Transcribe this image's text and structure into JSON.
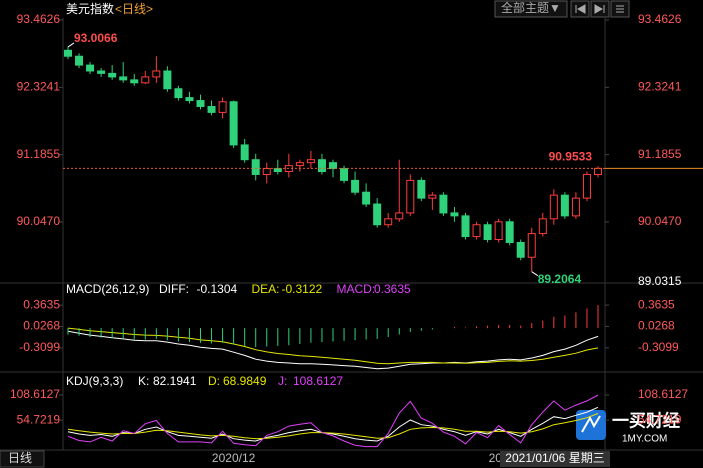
{
  "header": {
    "title": "美元指数",
    "period": "<日线>",
    "theme_button": "全部主题▼"
  },
  "chart_data": [
    {
      "type": "candlestick",
      "up_color": "#ff3c3c",
      "down_color": "#2fd27a",
      "ylim": [
        89.0315,
        93.4626
      ],
      "yticks": [
        {
          "value": 90.047,
          "label": "90.0470"
        },
        91.1855,
        92.3241,
        93.4626
      ],
      "categories": [
        null,
        null,
        null,
        null,
        null,
        null,
        null,
        null,
        null,
        null,
        null,
        null,
        null,
        null,
        null,
        "2020/12",
        null,
        null,
        null,
        null,
        null,
        null,
        null,
        null,
        null,
        null,
        null,
        null,
        null,
        null,
        null,
        null,
        null,
        null,
        null,
        null,
        null,
        null,
        null,
        "202",
        null,
        null,
        null,
        null,
        null,
        null,
        null,
        null,
        null
      ],
      "ohlc": [
        [
          92.95,
          93.0066,
          92.8,
          92.85
        ],
        [
          92.85,
          92.9,
          92.65,
          92.7
        ],
        [
          92.7,
          92.75,
          92.55,
          92.6
        ],
        [
          92.6,
          92.65,
          92.5,
          92.56
        ],
        [
          92.56,
          92.7,
          92.45,
          92.5
        ],
        [
          92.5,
          92.75,
          92.4,
          92.45
        ],
        [
          92.45,
          92.55,
          92.35,
          92.4
        ],
        [
          92.4,
          92.6,
          92.38,
          92.5
        ],
        [
          92.5,
          92.85,
          92.4,
          92.6
        ],
        [
          92.6,
          92.68,
          92.25,
          92.3
        ],
        [
          92.3,
          92.35,
          92.1,
          92.15
        ],
        [
          92.15,
          92.25,
          92.05,
          92.1
        ],
        [
          92.1,
          92.2,
          91.95,
          92.0
        ],
        [
          92.0,
          92.1,
          91.85,
          91.9
        ],
        [
          91.9,
          92.15,
          91.8,
          92.08
        ],
        [
          92.08,
          92.1,
          91.3,
          91.35
        ],
        [
          91.35,
          91.45,
          91.05,
          91.1
        ],
        [
          91.1,
          91.2,
          90.75,
          90.85
        ],
        [
          90.85,
          91.05,
          90.7,
          90.95
        ],
        [
          90.95,
          91.1,
          90.85,
          90.9
        ],
        [
          90.9,
          91.2,
          90.8,
          91.0
        ],
        [
          91.0,
          91.1,
          90.9,
          91.05
        ],
        [
          91.05,
          91.25,
          90.95,
          91.1
        ],
        [
          91.1,
          91.2,
          90.85,
          90.9
        ],
        [
          91.05,
          91.1,
          90.8,
          90.95
        ],
        [
          90.95,
          91.0,
          90.7,
          90.75
        ],
        [
          90.75,
          90.9,
          90.5,
          90.55
        ],
        [
          90.55,
          90.7,
          90.3,
          90.35
        ],
        [
          90.35,
          90.45,
          89.95,
          90.0
        ],
        [
          90.0,
          90.2,
          89.95,
          90.1
        ],
        [
          90.1,
          91.1,
          90.05,
          90.2
        ],
        [
          90.2,
          90.85,
          90.15,
          90.75
        ],
        [
          90.75,
          90.8,
          90.4,
          90.45
        ],
        [
          90.45,
          90.55,
          90.25,
          90.5
        ],
        [
          90.5,
          90.55,
          90.15,
          90.2
        ],
        [
          90.2,
          90.3,
          90.05,
          90.15
        ],
        [
          90.15,
          90.2,
          89.75,
          89.8
        ],
        [
          89.8,
          90.05,
          89.75,
          90.0
        ],
        [
          90.0,
          90.05,
          89.7,
          89.75
        ],
        [
          89.75,
          90.1,
          89.7,
          90.05
        ],
        [
          90.05,
          90.1,
          89.65,
          89.7
        ],
        [
          89.7,
          89.75,
          89.4,
          89.45
        ],
        [
          89.45,
          89.95,
          89.2064,
          89.85
        ],
        [
          89.85,
          90.2,
          89.8,
          90.1
        ],
        [
          90.1,
          90.6,
          90.0,
          90.5
        ],
        [
          90.5,
          90.55,
          90.1,
          90.15
        ],
        [
          90.15,
          90.55,
          90.1,
          90.45
        ],
        [
          90.45,
          90.9,
          90.4,
          90.85
        ],
        [
          90.85,
          90.99,
          90.8,
          90.9533
        ]
      ],
      "high_label": 93.0066,
      "low_label": 89.2064,
      "last_price": 90.9533,
      "crosshair_label": "2021/01/06 星期三"
    },
    {
      "type": "macd",
      "title": "MACD(26,12,9)",
      "ylim": [
        -0.66,
        0.57
      ],
      "yticks": [
        -0.3099,
        0.0268,
        0.3635
      ],
      "up_color": "#ff3c3c",
      "down_color": "#2fd27a",
      "series": [
        {
          "name": "DIFF:",
          "color": "#ffffff",
          "values": [
            -0.05,
            -0.08,
            -0.11,
            -0.13,
            -0.15,
            -0.17,
            -0.19,
            -0.2,
            -0.2,
            -0.22,
            -0.25,
            -0.27,
            -0.3,
            -0.32,
            -0.33,
            -0.38,
            -0.43,
            -0.49,
            -0.52,
            -0.54,
            -0.55,
            -0.56,
            -0.56,
            -0.57,
            -0.58,
            -0.59,
            -0.6,
            -0.62,
            -0.64,
            -0.63,
            -0.6,
            -0.57,
            -0.56,
            -0.55,
            -0.55,
            -0.54,
            -0.55,
            -0.53,
            -0.52,
            -0.5,
            -0.49,
            -0.5,
            -0.47,
            -0.43,
            -0.37,
            -0.33,
            -0.27,
            -0.19,
            -0.1304
          ]
        },
        {
          "name": "DEA:",
          "color": "#e6e600",
          "values": [
            0.0,
            -0.02,
            -0.04,
            -0.055,
            -0.07,
            -0.085,
            -0.1,
            -0.11,
            -0.115,
            -0.125,
            -0.145,
            -0.16,
            -0.185,
            -0.2,
            -0.215,
            -0.25,
            -0.29,
            -0.34,
            -0.375,
            -0.4,
            -0.415,
            -0.435,
            -0.445,
            -0.46,
            -0.475,
            -0.49,
            -0.505,
            -0.53,
            -0.555,
            -0.56,
            -0.55,
            -0.54,
            -0.54,
            -0.54,
            -0.55,
            -0.55,
            -0.555,
            -0.545,
            -0.54,
            -0.525,
            -0.515,
            -0.52,
            -0.51,
            -0.49,
            -0.46,
            -0.43,
            -0.395,
            -0.345,
            -0.3122
          ]
        },
        {
          "name": "MACD:",
          "color": "#e040fb",
          "histogram": true,
          "values": [
            -0.1,
            -0.12,
            -0.14,
            -0.15,
            -0.16,
            -0.17,
            -0.18,
            -0.18,
            -0.17,
            -0.19,
            -0.21,
            -0.22,
            -0.23,
            -0.24,
            -0.23,
            -0.26,
            -0.28,
            -0.3,
            -0.29,
            -0.28,
            -0.27,
            -0.25,
            -0.23,
            -0.22,
            -0.21,
            -0.2,
            -0.19,
            -0.18,
            -0.17,
            -0.14,
            -0.1,
            -0.06,
            -0.04,
            -0.02,
            0.0,
            0.02,
            0.01,
            0.03,
            0.04,
            0.05,
            0.05,
            0.04,
            0.08,
            0.12,
            0.18,
            0.2,
            0.25,
            0.31,
            0.3635
          ]
        }
      ]
    },
    {
      "type": "kdj",
      "title": "KDJ(9,3,3)",
      "ylim": [
        -5,
        145
      ],
      "yticks": [
        54.7219,
        108.6127
      ],
      "series": [
        {
          "name": "K:",
          "color": "#ffffff",
          "values": [
            30,
            25,
            22,
            24,
            20,
            28,
            26,
            35,
            40,
            30,
            22,
            20,
            18,
            16,
            25,
            15,
            12,
            10,
            18,
            22,
            28,
            32,
            35,
            28,
            25,
            20,
            15,
            12,
            10,
            20,
            40,
            55,
            45,
            42,
            35,
            30,
            22,
            30,
            25,
            35,
            28,
            20,
            35,
            48,
            62,
            58,
            65,
            72,
            82.1941
          ]
        },
        {
          "name": "D:",
          "color": "#e6e600",
          "values": [
            35,
            32,
            29,
            27,
            25,
            26,
            26,
            29,
            33,
            32,
            29,
            26,
            23,
            21,
            22,
            20,
            17,
            15,
            16,
            18,
            21,
            25,
            28,
            28,
            27,
            25,
            22,
            19,
            16,
            17,
            25,
            35,
            38,
            39,
            38,
            35,
            31,
            31,
            29,
            31,
            30,
            27,
            30,
            36,
            45,
            49,
            54,
            60,
            68.9849
          ]
        },
        {
          "name": "J:",
          "color": "#e040fb",
          "values": [
            20,
            11,
            8,
            18,
            10,
            32,
            26,
            47,
            54,
            26,
            8,
            8,
            8,
            6,
            31,
            5,
            2,
            0,
            22,
            30,
            42,
            46,
            49,
            28,
            21,
            10,
            1,
            -2,
            -2,
            26,
            70,
            95,
            59,
            48,
            29,
            20,
            4,
            28,
            17,
            43,
            24,
            6,
            45,
            72,
            96,
            76,
            87,
            96,
            108.6127
          ]
        }
      ]
    }
  ],
  "footer": {
    "period": "日线",
    "logo": "一买财经",
    "logo_sub": "1MY.COM"
  }
}
